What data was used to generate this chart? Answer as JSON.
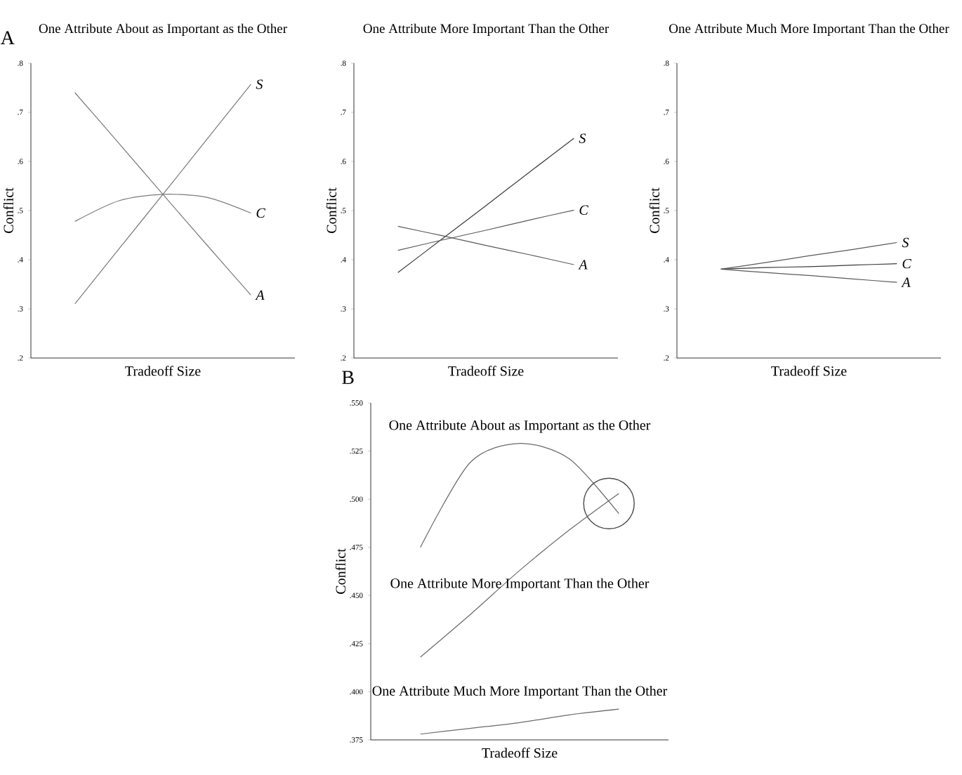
{
  "chart_data": [
    {
      "type": "line",
      "title": "One Attribute About as Important as the Other",
      "xlabel": "Tradeoff Size",
      "ylabel": "Conflict",
      "annotations": [
        "A"
      ],
      "categories": [
        null,
        null,
        null,
        null,
        null
      ],
      "ylim": [
        0.2,
        0.8
      ],
      "yticks": [
        {
          "value": 0.2,
          "label": ".2"
        },
        {
          "value": 0.3,
          "label": ".3"
        },
        {
          "value": 0.4,
          "label": ".4"
        },
        {
          "value": 0.5,
          "label": ".5"
        },
        {
          "value": 0.6,
          "label": ".6"
        },
        {
          "value": 0.7,
          "label": ".7"
        },
        {
          "value": 0.8,
          "label": ".8"
        }
      ],
      "series": [
        {
          "name": "S",
          "color": "#7a7a7a",
          "values": [
            0.31,
            0.422,
            0.533,
            0.645,
            0.757
          ]
        },
        {
          "name": "C",
          "color": "#7a7a7a",
          "values": [
            0.478,
            0.52,
            0.533,
            0.527,
            0.495
          ]
        },
        {
          "name": "A",
          "color": "#7a7a7a",
          "values": [
            0.74,
            0.637,
            0.533,
            0.43,
            0.328
          ]
        }
      ]
    },
    {
      "type": "line",
      "title": "One Attribute More Important Than the Other",
      "xlabel": "Tradeoff Size",
      "ylabel": "Conflict",
      "categories": [
        null,
        null,
        null,
        null,
        null
      ],
      "ylim": [
        0.2,
        0.8
      ],
      "yticks": [
        {
          "value": 0.2,
          "label": ".2"
        },
        {
          "value": 0.3,
          "label": ".3"
        },
        {
          "value": 0.4,
          "label": ".4"
        },
        {
          "value": 0.5,
          "label": ".5"
        },
        {
          "value": 0.6,
          "label": ".6"
        },
        {
          "value": 0.7,
          "label": ".7"
        },
        {
          "value": 0.8,
          "label": ".8"
        }
      ],
      "series": [
        {
          "name": "S",
          "color": "#3a3a3a",
          "values": [
            0.374,
            0.442,
            0.51,
            0.579,
            0.647
          ]
        },
        {
          "name": "C",
          "color": "#5a5a5a",
          "values": [
            0.419,
            0.44,
            0.46,
            0.481,
            0.501
          ]
        },
        {
          "name": "A",
          "color": "#5a5a5a",
          "values": [
            0.468,
            0.449,
            0.429,
            0.41,
            0.39
          ]
        }
      ]
    },
    {
      "type": "line",
      "title": "One Attribute Much More Important Than the Other",
      "xlabel": "Tradeoff Size",
      "ylabel": "Conflict",
      "categories": [
        null,
        null,
        null,
        null,
        null
      ],
      "ylim": [
        0.2,
        0.8
      ],
      "yticks": [
        {
          "value": 0.2,
          "label": ".2"
        },
        {
          "value": 0.3,
          "label": ".3"
        },
        {
          "value": 0.4,
          "label": ".4"
        },
        {
          "value": 0.5,
          "label": ".5"
        },
        {
          "value": 0.6,
          "label": ".6"
        },
        {
          "value": 0.7,
          "label": ".7"
        },
        {
          "value": 0.8,
          "label": ".8"
        }
      ],
      "series": [
        {
          "name": "S",
          "color": "#5a5a5a",
          "values": [
            0.381,
            0.394,
            0.408,
            0.421,
            0.435
          ]
        },
        {
          "name": "C",
          "color": "#3a3a3a",
          "values": [
            0.381,
            0.384,
            0.386,
            0.389,
            0.392
          ]
        },
        {
          "name": "A",
          "color": "#5a5a5a",
          "values": [
            0.381,
            0.374,
            0.368,
            0.361,
            0.354
          ]
        }
      ]
    },
    {
      "type": "line",
      "xlabel": "Tradeoff Size",
      "ylabel": "Conflict",
      "annotations": [
        "B"
      ],
      "categories": [
        null,
        null,
        null,
        null,
        null
      ],
      "ylim": [
        0.375,
        0.55
      ],
      "yticks": [
        {
          "value": 0.375,
          "label": ".375"
        },
        {
          "value": 0.4,
          "label": ".400"
        },
        {
          "value": 0.425,
          "label": ".425"
        },
        {
          "value": 0.45,
          "label": ".450"
        },
        {
          "value": 0.475,
          "label": ".475"
        },
        {
          "value": 0.5,
          "label": ".500"
        },
        {
          "value": 0.525,
          "label": ".525"
        },
        {
          "value": 0.55,
          "label": ".550"
        }
      ],
      "series": [
        {
          "name": "One Attribute About as Important as the Other",
          "color": "#6a6a6a",
          "values": [
            0.475,
            0.519,
            0.529,
            0.521,
            0.4925
          ]
        },
        {
          "name": "One Attribute More Important Than the Other",
          "color": "#6a6a6a",
          "values": [
            0.418,
            0.44,
            0.463,
            0.484,
            0.503
          ]
        },
        {
          "name": "One Attribute Much More Important Than the Other",
          "color": "#6a6a6a",
          "values": [
            0.378,
            0.381,
            0.384,
            0.388,
            0.391
          ]
        }
      ]
    }
  ]
}
